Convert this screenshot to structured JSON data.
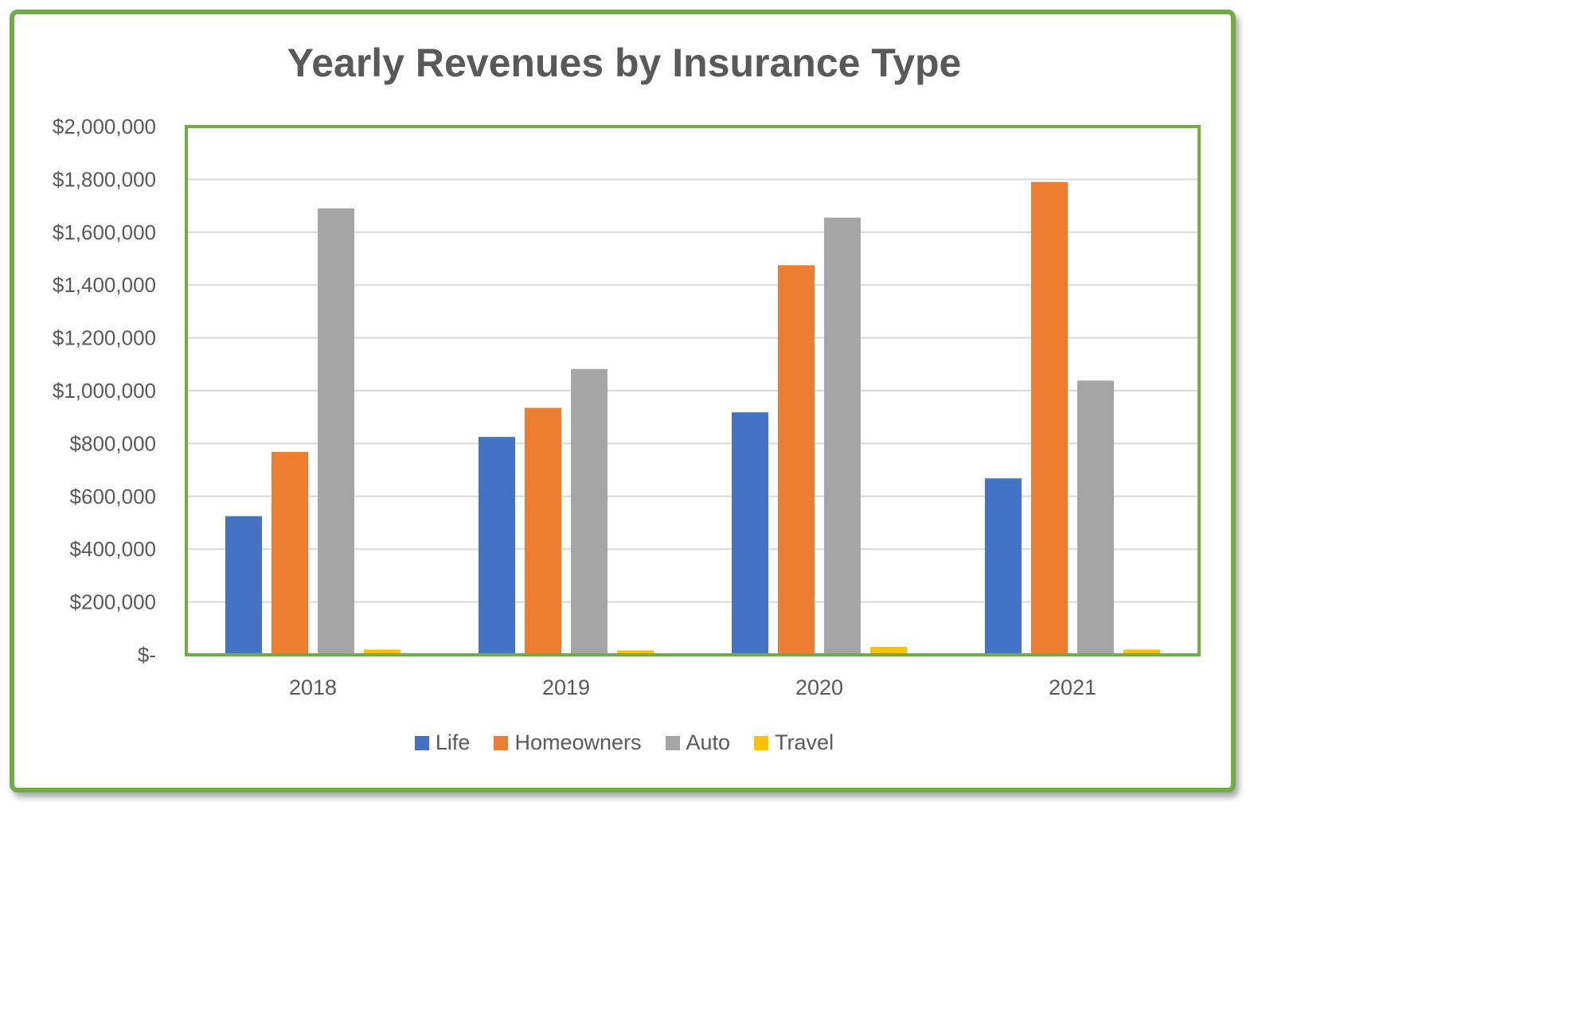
{
  "chart_data": {
    "type": "bar",
    "title": "Yearly Revenues by Insurance Type",
    "xlabel": "",
    "ylabel": "",
    "categories": [
      "2018",
      "2019",
      "2020",
      "2021"
    ],
    "series": [
      {
        "name": "Life",
        "color": "#4472c4",
        "values": [
          525000,
          825000,
          918000,
          668000
        ]
      },
      {
        "name": "Homeowners",
        "color": "#ed7d31",
        "values": [
          768000,
          935000,
          1475000,
          1790000
        ]
      },
      {
        "name": "Auto",
        "color": "#a5a5a5",
        "values": [
          1690000,
          1082000,
          1655000,
          1038000
        ]
      },
      {
        "name": "Travel",
        "color": "#ffc000",
        "values": [
          20000,
          17000,
          30000,
          20000
        ]
      }
    ],
    "ylim": [
      0,
      2000000
    ],
    "yticks": [
      0,
      200000,
      400000,
      600000,
      800000,
      1000000,
      1200000,
      1400000,
      1600000,
      1800000,
      2000000
    ],
    "ytick_labels": [
      "$-",
      "$200,000",
      "$400,000",
      "$600,000",
      "$800,000",
      "$1,000,000",
      "$1,200,000",
      "$1,400,000",
      "$1,600,000",
      "$1,800,000",
      "$2,000,000"
    ],
    "grid": true,
    "legend_position": "bottom",
    "plot_border_color": "#70ad47",
    "frame_color": "#70ad47"
  }
}
